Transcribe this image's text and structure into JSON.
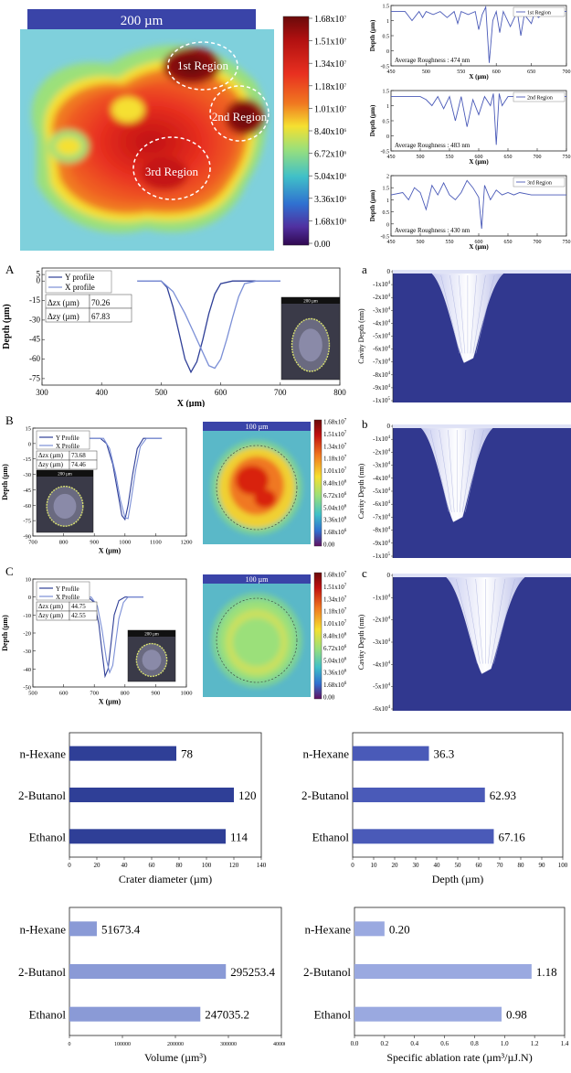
{
  "colors": {
    "dark_blue": "#2f3f97",
    "mid_blue": "#4a5ab8",
    "light_blue": "#7b8fd6",
    "lighter_blue": "#9aa9e0",
    "volume_blue": "#8a9ad6",
    "cavity_bg": "#31388f",
    "region_line": "#5566c0"
  },
  "top_map": {
    "scale_label": "200 µm",
    "regions": [
      "1st Region",
      "2nd Region",
      "3rd Region"
    ],
    "colorbar_ticks": [
      "1.68x10^7",
      "1.51x10^7",
      "1.34x10^7",
      "1.18x10^7",
      "1.01x10^7",
      "8.40x10^6",
      "6.72x10^6",
      "5.04x10^6",
      "3.36x10^6",
      "1.68x10^6",
      "0.00"
    ]
  },
  "panels": {
    "A": "A",
    "B": "B",
    "C": "C",
    "a": "a",
    "b": "b",
    "c": "c"
  },
  "chart_data": [
    {
      "type": "line",
      "id": "region1",
      "legend": "1st Region",
      "annotation": "Average Roughness : 474 nm",
      "xlabel": "X (µm)",
      "ylabel": "Depth (µm)",
      "xlim": [
        450,
        700
      ],
      "ylim": [
        -0.5,
        1.5
      ],
      "xticks": [
        450,
        500,
        550,
        600,
        650,
        700
      ],
      "yticks": [
        1.5,
        1.0,
        0.5,
        0.0,
        -0.5
      ],
      "x": [
        450,
        470,
        480,
        490,
        495,
        500,
        510,
        520,
        530,
        540,
        545,
        550,
        560,
        570,
        575,
        580,
        585,
        590,
        595,
        600,
        605,
        610,
        620,
        630,
        635,
        640,
        650,
        655,
        660,
        670,
        680,
        700
      ],
      "y": [
        1.3,
        1.3,
        1.0,
        1.3,
        1.1,
        1.3,
        1.2,
        1.3,
        1.1,
        1.3,
        0.9,
        1.3,
        1.2,
        1.3,
        0.7,
        1.2,
        1.45,
        -0.4,
        1.0,
        1.3,
        0.6,
        1.3,
        0.8,
        1.3,
        0.5,
        1.2,
        0.9,
        1.3,
        1.1,
        1.3,
        1.3,
        1.3
      ]
    },
    {
      "type": "line",
      "id": "region2",
      "legend": "2nd Region",
      "annotation": "Average Roughness : 483 nm",
      "xlabel": "X (µm)",
      "ylabel": "Depth (µm)",
      "xlim": [
        450,
        750
      ],
      "ylim": [
        -0.5,
        1.5
      ],
      "xticks": [
        450,
        500,
        550,
        600,
        650,
        700,
        750
      ],
      "yticks": [
        1.5,
        1.0,
        0.5,
        0.0,
        -0.5
      ],
      "x": [
        450,
        480,
        500,
        510,
        520,
        530,
        540,
        550,
        560,
        570,
        580,
        590,
        600,
        610,
        620,
        625,
        630,
        635,
        640,
        650,
        660,
        670,
        700,
        750
      ],
      "y": [
        1.3,
        1.3,
        1.3,
        1.2,
        1.0,
        1.3,
        0.9,
        1.3,
        0.5,
        1.3,
        0.3,
        1.2,
        0.7,
        1.3,
        1.0,
        1.4,
        -0.3,
        1.4,
        1.0,
        1.3,
        1.3,
        1.3,
        1.3,
        1.3
      ]
    },
    {
      "type": "line",
      "id": "region3",
      "legend": "3rd Region",
      "annotation": "Average Roughness : 430 nm",
      "xlabel": "X (µm)",
      "ylabel": "Depth (µm)",
      "xlim": [
        450,
        750
      ],
      "ylim": [
        -0.5,
        2.0
      ],
      "xticks": [
        450,
        500,
        550,
        600,
        650,
        700,
        750
      ],
      "yticks": [
        2.0,
        1.5,
        1.0,
        0.5,
        0.0,
        -0.5
      ],
      "x": [
        450,
        470,
        480,
        490,
        500,
        510,
        520,
        530,
        540,
        550,
        560,
        570,
        580,
        590,
        600,
        605,
        610,
        620,
        630,
        640,
        650,
        660,
        670,
        690,
        700,
        750
      ],
      "y": [
        1.2,
        1.3,
        1.0,
        1.5,
        1.3,
        0.6,
        1.6,
        1.2,
        1.7,
        1.2,
        1.0,
        1.3,
        1.8,
        1.5,
        1.1,
        -0.2,
        1.6,
        1.0,
        1.4,
        1.2,
        1.3,
        1.2,
        1.3,
        1.2,
        1.2,
        1.2
      ]
    },
    {
      "type": "line",
      "id": "profileA",
      "xlabel": "X (µm)",
      "ylabel": "Depth (µm)",
      "xlim": [
        300,
        800
      ],
      "ylim": [
        -80,
        10
      ],
      "xticks": [
        300,
        400,
        500,
        600,
        700,
        800
      ],
      "yticks": [
        5,
        0,
        -15,
        -30,
        -45,
        -60,
        -75
      ],
      "ytick_labels": [
        "5",
        "0",
        "-15",
        "-30",
        "-45",
        "-60",
        "-75"
      ],
      "legend": [
        "Y profile",
        "X profile"
      ],
      "table": [
        [
          "Δzx (µm)",
          "70.26"
        ],
        [
          "Δzy (µm)",
          "67.83"
        ]
      ],
      "inset_label": "200 µm",
      "series": [
        {
          "name": "Y profile",
          "x": [
            460,
            500,
            510,
            520,
            530,
            540,
            550,
            560,
            570,
            580,
            590,
            600,
            620,
            640,
            700
          ],
          "y": [
            0,
            0,
            -5,
            -20,
            -40,
            -60,
            -70,
            -62,
            -45,
            -25,
            -10,
            -2,
            0,
            0,
            0
          ]
        },
        {
          "name": "X profile",
          "x": [
            460,
            500,
            520,
            540,
            555,
            570,
            580,
            590,
            600,
            610,
            620,
            630,
            640,
            660,
            700
          ],
          "y": [
            0,
            0,
            -8,
            -25,
            -40,
            -55,
            -65,
            -67,
            -60,
            -45,
            -28,
            -12,
            -2,
            0,
            0
          ]
        }
      ]
    },
    {
      "type": "line",
      "id": "profileB",
      "xlabel": "X (µm)",
      "ylabel": "Depth (µm)",
      "xlim": [
        700,
        1200
      ],
      "ylim": [
        -90,
        15
      ],
      "xticks": [
        700,
        800,
        900,
        1000,
        1100,
        1200
      ],
      "yticks": [
        15,
        0,
        -15,
        -30,
        -45,
        -60,
        -75,
        -90
      ],
      "legend": [
        "Y Profile",
        "X Profile"
      ],
      "table": [
        [
          "Δzx (µm)",
          "73.68"
        ],
        [
          "Δzy (µm)",
          "74.46"
        ]
      ],
      "inset_label": "200 µm",
      "series": [
        {
          "name": "Y Profile",
          "x": [
            880,
            920,
            940,
            960,
            975,
            990,
            1000,
            1010,
            1025,
            1040,
            1060,
            1120
          ],
          "y": [
            5,
            5,
            0,
            -20,
            -45,
            -70,
            -74,
            -60,
            -30,
            -5,
            5,
            5
          ]
        },
        {
          "name": "X Profile",
          "x": [
            880,
            930,
            950,
            970,
            985,
            1000,
            1010,
            1020,
            1035,
            1050,
            1070,
            1120
          ],
          "y": [
            5,
            5,
            -5,
            -30,
            -55,
            -72,
            -73,
            -55,
            -25,
            -3,
            5,
            5
          ]
        }
      ]
    },
    {
      "type": "line",
      "id": "profileC",
      "xlabel": "X (µm)",
      "ylabel": "Depth (µm)",
      "xlim": [
        500,
        1000
      ],
      "ylim": [
        -50,
        10
      ],
      "xticks": [
        500,
        600,
        700,
        800,
        900,
        1000
      ],
      "yticks": [
        10,
        0,
        -10,
        -20,
        -30,
        -40,
        -50
      ],
      "legend": [
        "Y Profile",
        "X Profile"
      ],
      "table": [
        [
          "Δzx (µm)",
          "44.75"
        ],
        [
          "Δzy (µm)",
          "42.55"
        ]
      ],
      "inset_label": "200 µm",
      "series": [
        {
          "name": "Y Profile",
          "x": [
            620,
            680,
            700,
            715,
            725,
            735,
            745,
            755,
            765,
            780,
            800,
            860
          ],
          "y": [
            0,
            0,
            -3,
            -15,
            -30,
            -44,
            -40,
            -25,
            -10,
            -2,
            0,
            0
          ]
        },
        {
          "name": "X Profile",
          "x": [
            620,
            690,
            710,
            725,
            740,
            750,
            760,
            770,
            780,
            795,
            810,
            860
          ],
          "y": [
            0,
            0,
            -5,
            -18,
            -35,
            -42,
            -38,
            -25,
            -12,
            -3,
            0,
            0
          ]
        }
      ]
    },
    {
      "type": "surface",
      "id": "cavityA",
      "ylabel": "Cavity Depth (nm)",
      "ytick_labels": [
        "0",
        "-1x10^4",
        "-2x10^4",
        "-3x10^4",
        "-4x10^4",
        "-5x10^4",
        "-6x10^4",
        "-7x10^4",
        "-8x10^4",
        "-9x10^4",
        "-1x10^5"
      ],
      "min_depth": -72000
    },
    {
      "type": "surface",
      "id": "cavityB",
      "ylabel": "Cavity Depth (nm)",
      "ytick_labels": [
        "0",
        "-1x10^4",
        "-2x10^4",
        "-3x10^4",
        "-4x10^4",
        "-5x10^4",
        "-6x10^4",
        "-7x10^4",
        "-8x10^4",
        "-9x10^4",
        "-1x10^5"
      ],
      "min_depth": -75000
    },
    {
      "type": "surface",
      "id": "cavityC",
      "ylabel": "Cavity Depth (nm)",
      "ytick_labels": [
        "0",
        "-1x10^4",
        "-2x10^4",
        "-3x10^4",
        "-4x10^4",
        "-5x10^4",
        "-6x10^4"
      ],
      "min_depth": -45000
    },
    {
      "type": "bar",
      "id": "crater",
      "orientation": "horizontal",
      "categories": [
        "n-Hexane",
        "2-Butanol",
        "Ethanol"
      ],
      "values": [
        78,
        120,
        114
      ],
      "value_labels": [
        "78",
        "120",
        "114"
      ],
      "xlabel": "Crater diameter (µm)",
      "xlim": [
        0,
        140
      ],
      "xticks": [
        0,
        20,
        40,
        60,
        80,
        100,
        120,
        140
      ]
    },
    {
      "type": "bar",
      "id": "depth",
      "orientation": "horizontal",
      "categories": [
        "n-Hexane",
        "2-Butanol",
        "Ethanol"
      ],
      "values": [
        36.3,
        62.93,
        67.16
      ],
      "value_labels": [
        "36.3",
        "62.93",
        "67.16"
      ],
      "xlabel": "Depth (µm)",
      "xlim": [
        0,
        100
      ],
      "xticks": [
        0,
        10,
        20,
        30,
        40,
        50,
        60,
        70,
        80,
        90,
        100
      ],
      "xtick_labels": [
        "0",
        "10",
        "20",
        "30",
        "40",
        "50",
        "60",
        "70",
        "80",
        "90",
        "100"
      ]
    },
    {
      "type": "bar",
      "id": "volume",
      "orientation": "horizontal",
      "categories": [
        "n-Hexane",
        "2-Butanol",
        "Ethanol"
      ],
      "values": [
        51673.4,
        295253.4,
        247035.2
      ],
      "value_labels": [
        "51673.4",
        "295253.4",
        "247035.2"
      ],
      "xlabel": "Volume (µm³)",
      "xlim": [
        0,
        400000
      ],
      "xticks": [
        0,
        100000,
        200000,
        300000,
        400000
      ]
    },
    {
      "type": "bar",
      "id": "ablation",
      "orientation": "horizontal",
      "categories": [
        "n-Hexane",
        "2-Butanol",
        "Ethanol"
      ],
      "values": [
        0.2,
        1.18,
        0.98
      ],
      "value_labels": [
        "0.20",
        "1.18",
        "0.98"
      ],
      "xlabel": "Specific ablation rate (µm³/µJ.N)",
      "xlim": [
        0,
        1.4
      ],
      "xticks": [
        0.0,
        0.2,
        0.4,
        0.6,
        0.8,
        1.0,
        1.2,
        1.4
      ],
      "xtick_labels": [
        "0.0",
        "0.2",
        "0.4",
        "0.6",
        "0.8",
        "1.0",
        "1.2",
        "1.4"
      ]
    }
  ],
  "colorbar_small": {
    "ticks": [
      "1.68x10^7",
      "1.51x10^7",
      "1.34x10^7",
      "1.18x10^7",
      "1.01x10^7",
      "8.40x10^6",
      "6.72x10^6",
      "5.04x10^6",
      "3.36x10^6",
      "1.68x10^6",
      "0.00"
    ],
    "scale_label": "100 µm"
  }
}
